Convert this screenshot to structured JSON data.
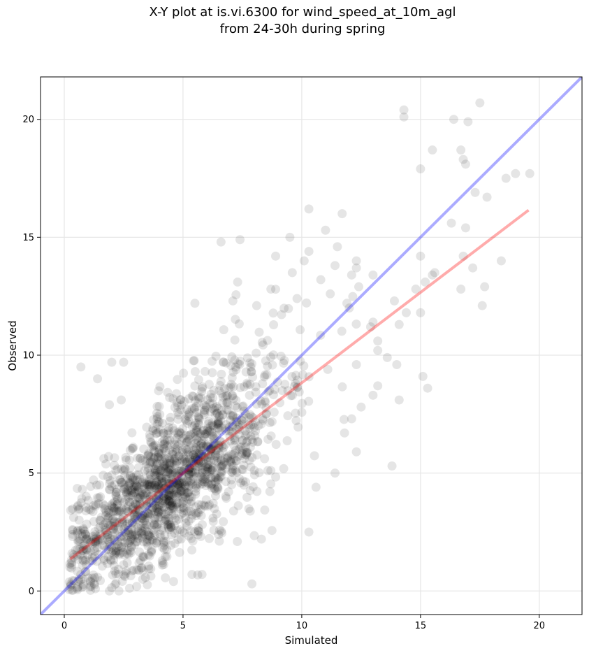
{
  "chart_data": {
    "type": "scatter",
    "title_line1": "X-Y plot at is.vi.6300 for wind_speed_at_10m_agl",
    "title_line2": "from 24-30h during spring",
    "xlabel": "Simulated",
    "ylabel": "Observed",
    "xlim": [
      -1.0,
      21.8
    ],
    "ylim": [
      -1.0,
      21.8
    ],
    "xticks": [
      0,
      5,
      10,
      15,
      20
    ],
    "yticks": [
      0,
      5,
      10,
      15,
      20
    ],
    "grid": true,
    "point_color": "#000000",
    "point_alpha": 0.1,
    "one_to_one_line": {
      "color": "#0000ff",
      "alpha": 0.33,
      "x": [
        -1.0,
        21.8
      ],
      "y": [
        -1.0,
        21.8
      ]
    },
    "fit_line": {
      "color": "#ff0000",
      "alpha": 0.33,
      "x": [
        0.25,
        19.55
      ],
      "y": [
        1.35,
        16.15
      ]
    },
    "cluster_model": {
      "count": 1650,
      "seed": 7,
      "x_mean": 4.6,
      "x_sd": 2.3,
      "noise_sd": 1.55,
      "intercept": 1.2,
      "slope": 0.78,
      "x_min": 0.2,
      "x_max": 12.5,
      "y_min": 0.0
    },
    "outlier_points": [
      {
        "x": 14.3,
        "y": 20.4
      },
      {
        "x": 14.3,
        "y": 20.1
      },
      {
        "x": 17.5,
        "y": 20.7
      },
      {
        "x": 16.4,
        "y": 20.0
      },
      {
        "x": 17.0,
        "y": 19.9
      },
      {
        "x": 15.5,
        "y": 18.7
      },
      {
        "x": 16.7,
        "y": 18.7
      },
      {
        "x": 16.8,
        "y": 18.3
      },
      {
        "x": 16.9,
        "y": 18.1
      },
      {
        "x": 15.0,
        "y": 17.9
      },
      {
        "x": 19.0,
        "y": 17.7
      },
      {
        "x": 19.6,
        "y": 17.7
      },
      {
        "x": 18.6,
        "y": 17.5
      },
      {
        "x": 17.3,
        "y": 16.9
      },
      {
        "x": 17.8,
        "y": 16.7
      },
      {
        "x": 10.3,
        "y": 16.2
      },
      {
        "x": 11.7,
        "y": 16.0
      },
      {
        "x": 16.3,
        "y": 15.6
      },
      {
        "x": 16.9,
        "y": 15.4
      },
      {
        "x": 11.0,
        "y": 15.3
      },
      {
        "x": 9.5,
        "y": 15.0
      },
      {
        "x": 7.4,
        "y": 14.9
      },
      {
        "x": 6.6,
        "y": 14.8
      },
      {
        "x": 11.5,
        "y": 14.6
      },
      {
        "x": 10.3,
        "y": 14.4
      },
      {
        "x": 15.0,
        "y": 14.2
      },
      {
        "x": 8.9,
        "y": 14.2
      },
      {
        "x": 16.8,
        "y": 14.2
      },
      {
        "x": 12.3,
        "y": 14.0
      },
      {
        "x": 18.4,
        "y": 14.0
      },
      {
        "x": 10.1,
        "y": 14.0
      },
      {
        "x": 11.4,
        "y": 13.8
      },
      {
        "x": 12.3,
        "y": 13.7
      },
      {
        "x": 17.2,
        "y": 13.7
      },
      {
        "x": 9.6,
        "y": 13.5
      },
      {
        "x": 15.6,
        "y": 13.5
      },
      {
        "x": 15.5,
        "y": 13.4
      },
      {
        "x": 12.1,
        "y": 13.4
      },
      {
        "x": 13.0,
        "y": 13.4
      },
      {
        "x": 10.8,
        "y": 13.2
      },
      {
        "x": 7.3,
        "y": 13.1
      },
      {
        "x": 15.2,
        "y": 13.1
      },
      {
        "x": 12.4,
        "y": 12.9
      },
      {
        "x": 17.7,
        "y": 12.9
      },
      {
        "x": 16.7,
        "y": 12.8
      },
      {
        "x": 14.8,
        "y": 12.8
      },
      {
        "x": 8.7,
        "y": 12.8
      },
      {
        "x": 11.2,
        "y": 12.6
      },
      {
        "x": 9.8,
        "y": 12.4
      },
      {
        "x": 13.9,
        "y": 12.3
      },
      {
        "x": 7.1,
        "y": 12.3
      },
      {
        "x": 11.9,
        "y": 12.2
      },
      {
        "x": 5.5,
        "y": 12.2
      },
      {
        "x": 17.6,
        "y": 12.1
      },
      {
        "x": 8.1,
        "y": 12.1
      },
      {
        "x": 12.0,
        "y": 12.0
      },
      {
        "x": 14.4,
        "y": 11.8
      },
      {
        "x": 15.0,
        "y": 11.8
      },
      {
        "x": 14.1,
        "y": 11.3
      },
      {
        "x": 13.0,
        "y": 11.4
      },
      {
        "x": 12.9,
        "y": 11.2
      },
      {
        "x": 13.2,
        "y": 10.6
      },
      {
        "x": 13.2,
        "y": 10.2
      },
      {
        "x": 12.3,
        "y": 9.6
      },
      {
        "x": 14.0,
        "y": 9.6
      },
      {
        "x": 13.6,
        "y": 9.9
      },
      {
        "x": 15.1,
        "y": 9.1
      },
      {
        "x": 15.3,
        "y": 8.6
      },
      {
        "x": 13.2,
        "y": 8.7
      },
      {
        "x": 13.0,
        "y": 8.3
      },
      {
        "x": 14.1,
        "y": 8.1
      },
      {
        "x": 12.5,
        "y": 7.8
      },
      {
        "x": 12.1,
        "y": 7.3
      },
      {
        "x": 11.8,
        "y": 6.7
      },
      {
        "x": 12.3,
        "y": 5.9
      },
      {
        "x": 13.8,
        "y": 5.3
      },
      {
        "x": 11.4,
        "y": 5.0
      },
      {
        "x": 10.6,
        "y": 4.4
      },
      {
        "x": 10.3,
        "y": 2.5
      },
      {
        "x": 7.9,
        "y": 0.3
      },
      {
        "x": 8.3,
        "y": 2.2
      },
      {
        "x": 0.7,
        "y": 9.5
      },
      {
        "x": 1.4,
        "y": 9.0
      },
      {
        "x": 2.0,
        "y": 9.7
      },
      {
        "x": 2.5,
        "y": 9.7
      },
      {
        "x": 1.9,
        "y": 7.9
      },
      {
        "x": 2.4,
        "y": 8.1
      },
      {
        "x": 0.8,
        "y": 0.2
      },
      {
        "x": 1.9,
        "y": 0.0
      },
      {
        "x": 2.3,
        "y": 0.0
      },
      {
        "x": 4.6,
        "y": 0.4
      },
      {
        "x": 5.8,
        "y": 0.7
      }
    ]
  }
}
